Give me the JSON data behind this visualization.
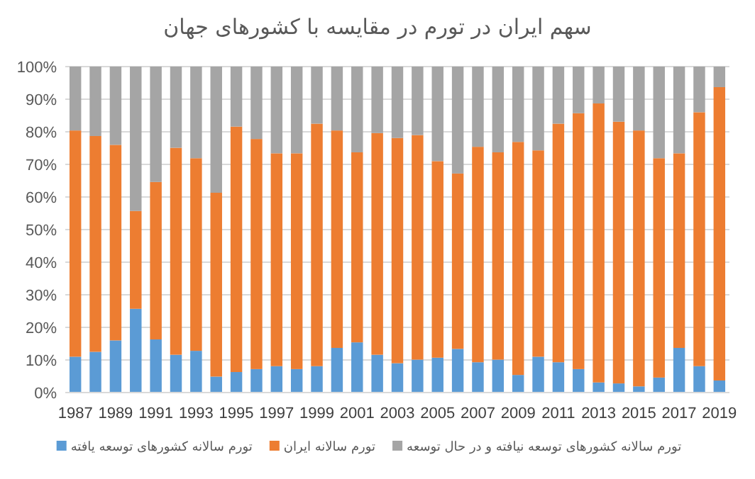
{
  "chart_data": {
    "type": "bar",
    "stacked": true,
    "title": "سهم ایران در تورم در مقایسه با کشورهای جهان",
    "categories": [
      "1987",
      null,
      "1989",
      null,
      "1991",
      null,
      "1993",
      null,
      "1995",
      null,
      "1997",
      null,
      "1999",
      null,
      "2001",
      null,
      "2003",
      null,
      "2005",
      null,
      "2007",
      null,
      "2009",
      null,
      "2011",
      null,
      "2013",
      null,
      "2015",
      null,
      "2017",
      null,
      "2019"
    ],
    "series": [
      {
        "name": "تورم سالانه کشورهای توسعه یافته",
        "color": "#5b9bd5",
        "values": [
          11,
          12.5,
          16,
          25.7,
          16.3,
          11.6,
          12.8,
          4.9,
          6.3,
          7.2,
          8.1,
          7.2,
          8.1,
          13.7,
          15.4,
          11.6,
          9,
          10.1,
          10.7,
          13.4,
          9.3,
          10.1,
          5.4,
          11,
          9.3,
          7.2,
          3.1,
          2.8,
          1.9,
          4.6,
          13.7,
          8.1,
          3.7
        ]
      },
      {
        "name": "تورم سالانه ایران",
        "color": "#ed7d31",
        "values": [
          69.4,
          66.2,
          60,
          30,
          48.3,
          63.5,
          59.1,
          56.4,
          75.3,
          70.6,
          65.3,
          66.2,
          74.4,
          66.7,
          58.3,
          68,
          69.1,
          68.9,
          60.3,
          53.8,
          66.1,
          63.6,
          71.5,
          63.3,
          73.2,
          78.5,
          85.6,
          80.3,
          78.5,
          67.3,
          59.7,
          77.9,
          90
        ]
      },
      {
        "name": "تورم سالانه کشورهای توسعه نیافته و در حال توسعه",
        "color": "#a5a5a5",
        "values": [
          19.6,
          21.3,
          24,
          44.3,
          35.4,
          24.9,
          28.1,
          38.7,
          18.4,
          22.2,
          26.6,
          26.6,
          17.5,
          19.6,
          26.3,
          20.4,
          21.9,
          21,
          29,
          32.8,
          24.6,
          26.3,
          23.1,
          25.7,
          17.5,
          14.3,
          11.3,
          16.9,
          19.6,
          28.1,
          26.6,
          14,
          6.3
        ]
      }
    ],
    "ylim": [
      0,
      100
    ],
    "yticks": [
      {
        "value": 0,
        "label": "0%"
      },
      {
        "value": 10,
        "label": "10%"
      },
      {
        "value": 20,
        "label": "20%"
      },
      {
        "value": 30,
        "label": "30%"
      },
      {
        "value": 40,
        "label": "40%"
      },
      {
        "value": 50,
        "label": "50%"
      },
      {
        "value": 60,
        "label": "60%"
      },
      {
        "value": 70,
        "label": "70%"
      },
      {
        "value": 80,
        "label": "80%"
      },
      {
        "value": 90,
        "label": "90%"
      },
      {
        "value": 100,
        "label": "100%"
      }
    ],
    "grid": "y",
    "legend": "bottom"
  }
}
